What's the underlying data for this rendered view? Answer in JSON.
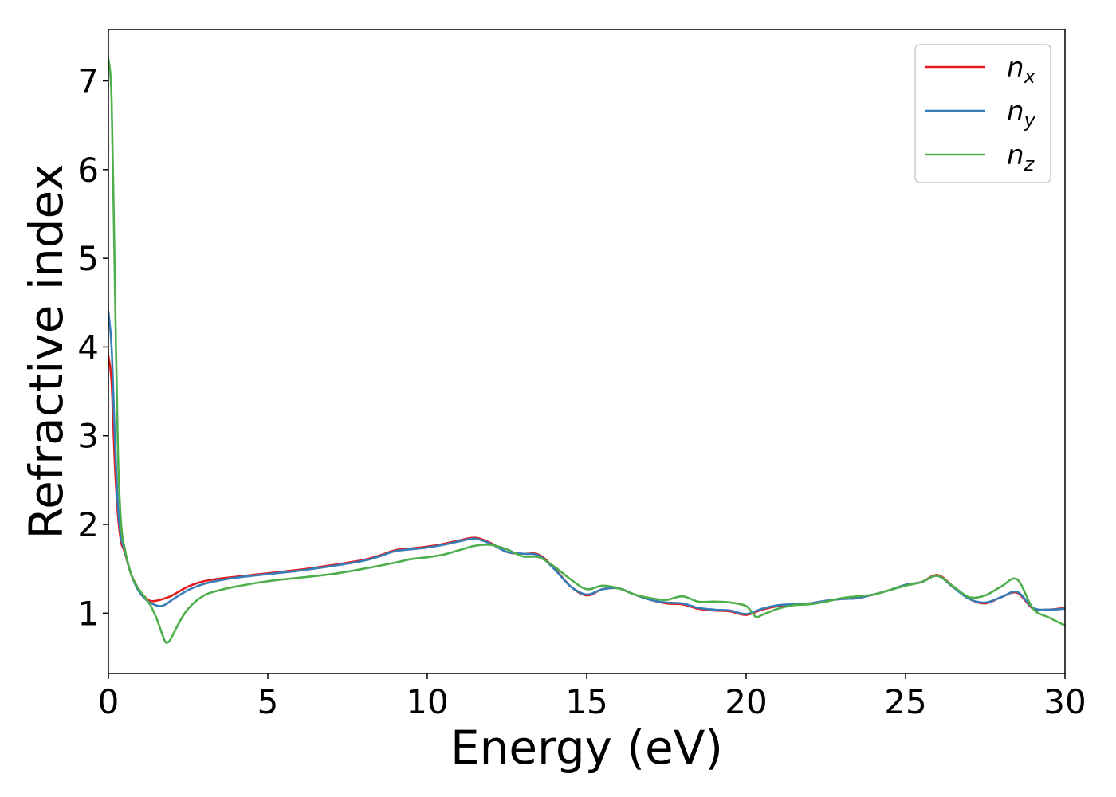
{
  "chart_data": {
    "type": "line",
    "title": "",
    "xlabel": "Energy (eV)",
    "ylabel": "Refractive index",
    "xlim": [
      0,
      30
    ],
    "ylim": [
      0.32,
      7.58
    ],
    "xticks": [
      0,
      5,
      10,
      15,
      20,
      25,
      30
    ],
    "yticks": [
      1,
      2,
      3,
      4,
      5,
      6,
      7
    ],
    "grid": false,
    "legend": "top-right",
    "series": [
      {
        "name": "n",
        "subscript": "x",
        "color": "#e41a1c",
        "x": [
          0,
          0.1,
          0.2,
          0.3,
          0.4,
          0.5,
          0.7,
          0.9,
          1.1,
          1.3,
          1.5,
          1.8,
          2.0,
          2.5,
          3.0,
          3.5,
          4.0,
          5.0,
          6.0,
          7.0,
          8.0,
          8.5,
          9.0,
          9.5,
          10.0,
          10.5,
          11.0,
          11.5,
          12.0,
          12.5,
          13.0,
          13.5,
          14.0,
          14.5,
          15.0,
          15.5,
          16.0,
          16.5,
          17.0,
          17.5,
          18.0,
          18.5,
          19.0,
          19.5,
          20.0,
          20.5,
          21.0,
          21.5,
          22.0,
          22.5,
          23.0,
          23.5,
          24.0,
          24.5,
          25.0,
          25.5,
          26.0,
          26.5,
          27.0,
          27.5,
          28.0,
          28.5,
          29.0,
          29.5,
          30.0
        ],
        "y": [
          3.9,
          3.6,
          2.7,
          2.1,
          1.8,
          1.7,
          1.45,
          1.3,
          1.2,
          1.14,
          1.14,
          1.17,
          1.2,
          1.3,
          1.36,
          1.39,
          1.41,
          1.45,
          1.49,
          1.54,
          1.6,
          1.65,
          1.71,
          1.73,
          1.75,
          1.78,
          1.82,
          1.85,
          1.79,
          1.69,
          1.67,
          1.66,
          1.5,
          1.3,
          1.2,
          1.27,
          1.28,
          1.21,
          1.15,
          1.11,
          1.1,
          1.05,
          1.03,
          1.02,
          0.98,
          1.04,
          1.08,
          1.1,
          1.11,
          1.14,
          1.16,
          1.17,
          1.21,
          1.26,
          1.32,
          1.35,
          1.43,
          1.3,
          1.16,
          1.11,
          1.18,
          1.23,
          1.05,
          1.04,
          1.06
        ]
      },
      {
        "name": "n",
        "subscript": "y",
        "color": "#377eb8",
        "x": [
          0,
          0.1,
          0.2,
          0.3,
          0.4,
          0.5,
          0.7,
          0.9,
          1.1,
          1.3,
          1.6,
          1.8,
          2.0,
          2.5,
          3.0,
          3.5,
          4.0,
          5.0,
          6.0,
          7.0,
          8.0,
          8.5,
          9.0,
          9.5,
          10.0,
          10.5,
          11.0,
          11.5,
          12.0,
          12.5,
          13.0,
          13.5,
          14.0,
          14.5,
          15.0,
          15.5,
          16.0,
          16.5,
          17.0,
          17.5,
          18.0,
          18.5,
          19.0,
          19.5,
          20.0,
          20.5,
          21.0,
          21.5,
          22.0,
          22.5,
          23.0,
          23.5,
          24.0,
          24.5,
          25.0,
          25.5,
          26.0,
          26.5,
          27.0,
          27.5,
          28.0,
          28.5,
          29.0,
          29.5,
          30.0
        ],
        "y": [
          4.4,
          4.0,
          3.0,
          2.2,
          1.85,
          1.72,
          1.45,
          1.28,
          1.18,
          1.12,
          1.08,
          1.1,
          1.15,
          1.26,
          1.33,
          1.37,
          1.4,
          1.44,
          1.48,
          1.53,
          1.59,
          1.64,
          1.7,
          1.72,
          1.74,
          1.77,
          1.81,
          1.84,
          1.78,
          1.69,
          1.67,
          1.65,
          1.49,
          1.3,
          1.21,
          1.27,
          1.28,
          1.21,
          1.15,
          1.12,
          1.11,
          1.06,
          1.04,
          1.03,
          0.99,
          1.05,
          1.09,
          1.1,
          1.11,
          1.14,
          1.16,
          1.17,
          1.21,
          1.26,
          1.32,
          1.35,
          1.42,
          1.29,
          1.16,
          1.12,
          1.18,
          1.24,
          1.06,
          1.04,
          1.05
        ]
      },
      {
        "name": "n",
        "subscript": "z",
        "color": "#4daf4a",
        "x": [
          0,
          0.1,
          0.2,
          0.3,
          0.4,
          0.5,
          0.7,
          0.9,
          1.1,
          1.3,
          1.5,
          1.7,
          1.8,
          1.9,
          2.0,
          2.2,
          2.5,
          3.0,
          3.5,
          4.0,
          5.0,
          6.0,
          7.0,
          8.0,
          9.0,
          9.5,
          10.0,
          10.5,
          11.0,
          11.5,
          12.0,
          12.5,
          13.0,
          13.5,
          14.0,
          14.5,
          15.0,
          15.5,
          16.0,
          16.5,
          17.0,
          17.5,
          18.0,
          18.5,
          19.0,
          19.5,
          20.0,
          20.3,
          20.5,
          21.0,
          21.5,
          22.0,
          22.5,
          23.0,
          23.5,
          24.0,
          24.5,
          25.0,
          25.5,
          26.0,
          26.5,
          27.0,
          27.5,
          28.0,
          28.5,
          29.0,
          29.5,
          30.0
        ],
        "y": [
          7.25,
          6.8,
          4.8,
          2.8,
          2.0,
          1.75,
          1.45,
          1.3,
          1.2,
          1.1,
          0.95,
          0.75,
          0.67,
          0.68,
          0.74,
          0.88,
          1.05,
          1.2,
          1.26,
          1.3,
          1.36,
          1.4,
          1.44,
          1.5,
          1.57,
          1.61,
          1.63,
          1.66,
          1.71,
          1.76,
          1.77,
          1.72,
          1.64,
          1.63,
          1.52,
          1.38,
          1.27,
          1.31,
          1.28,
          1.21,
          1.17,
          1.15,
          1.19,
          1.13,
          1.13,
          1.12,
          1.08,
          0.96,
          0.98,
          1.05,
          1.09,
          1.1,
          1.13,
          1.17,
          1.19,
          1.21,
          1.26,
          1.31,
          1.35,
          1.42,
          1.3,
          1.18,
          1.2,
          1.3,
          1.38,
          1.05,
          0.95,
          0.86
        ]
      }
    ]
  }
}
